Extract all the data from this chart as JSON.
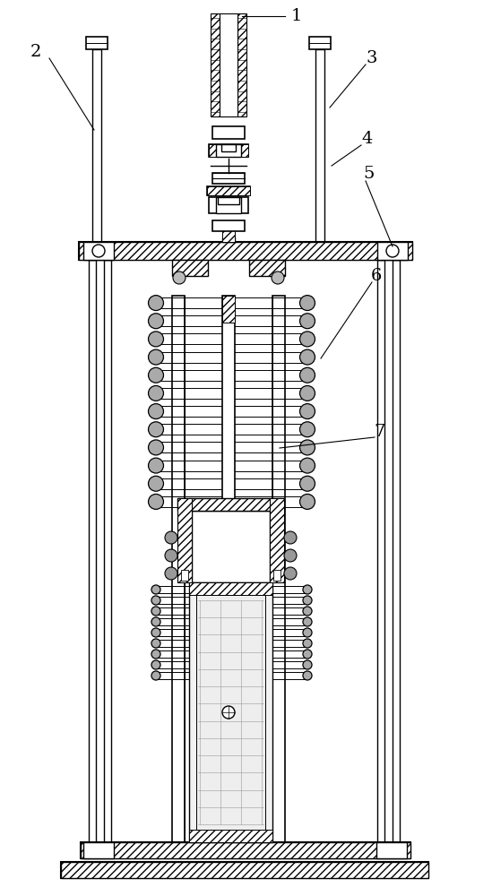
{
  "bg_color": "#ffffff",
  "line_color": "#000000",
  "figsize": [
    5.49,
    10.0
  ],
  "dpi": 100
}
